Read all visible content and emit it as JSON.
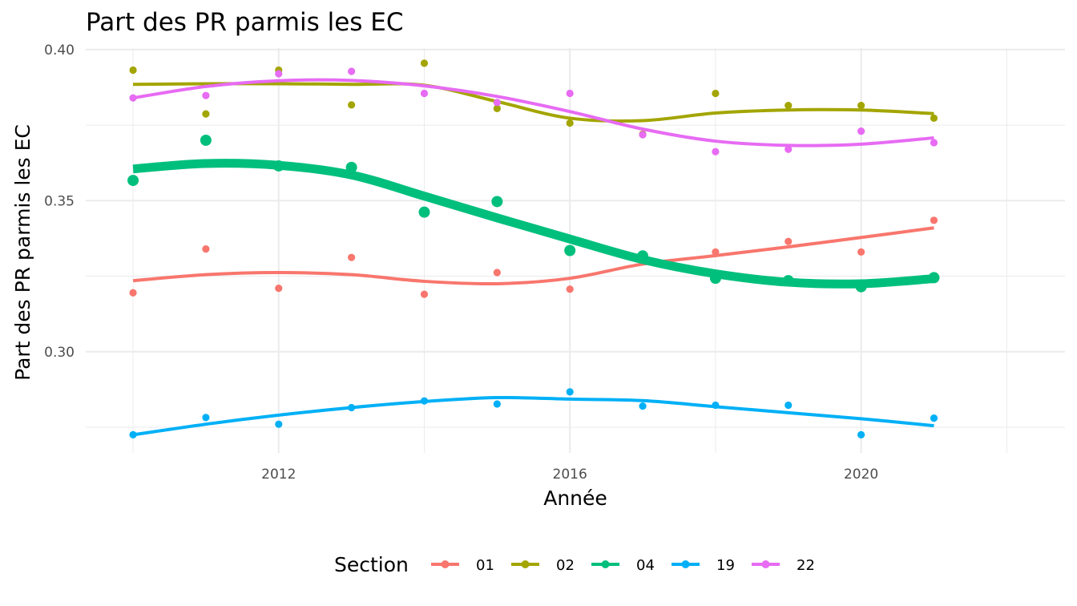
{
  "chart_data": {
    "type": "line",
    "title": "Part des PR parmis les EC",
    "xlabel": "Année",
    "ylabel": "Part des PR parmis les EC",
    "xlim": [
      2009.35,
      2022.8
    ],
    "ylim": [
      0.2665,
      0.4005
    ],
    "x_ticks": [
      2012,
      2016,
      2020
    ],
    "y_ticks": [
      0.3,
      0.35,
      0.4
    ],
    "y_tick_labels": [
      "0.30",
      "0.35",
      "0.40"
    ],
    "grid": true,
    "legend": {
      "title": "Section",
      "position": "bottom"
    },
    "x": [
      2010,
      2011,
      2012,
      2013,
      2014,
      2015,
      2016,
      2017,
      2018,
      2019,
      2020,
      2021
    ],
    "series": [
      {
        "name": "01",
        "color": "#F8766D",
        "emphasis": false,
        "points": [
          0.3195,
          0.334,
          0.321,
          0.3312,
          0.319,
          0.3262,
          0.3207,
          0.33,
          0.333,
          0.3365,
          0.333,
          0.3435
        ],
        "smooth": [
          0.3235,
          0.3255,
          0.3262,
          0.3255,
          0.3233,
          0.3225,
          0.3243,
          0.329,
          0.3318,
          0.3347,
          0.3378,
          0.341
        ]
      },
      {
        "name": "02",
        "color": "#A3A500",
        "emphasis": false,
        "points": [
          0.3932,
          0.3787,
          0.3932,
          0.3817,
          0.3955,
          0.3805,
          0.3757,
          0.372,
          0.3855,
          0.3815,
          0.3815,
          0.3773
        ],
        "smooth": [
          0.3885,
          0.3887,
          0.3887,
          0.3885,
          0.3882,
          0.3828,
          0.3773,
          0.3765,
          0.379,
          0.38,
          0.38,
          0.3788
        ]
      },
      {
        "name": "04",
        "color": "#00BF7D",
        "emphasis": true,
        "points": [
          0.3567,
          0.37,
          0.3615,
          0.361,
          0.3462,
          0.3497,
          0.3335,
          0.3317,
          0.3243,
          0.3235,
          0.3215,
          0.3245
        ],
        "smooth": [
          0.3605,
          0.3623,
          0.3617,
          0.3585,
          0.3515,
          0.3443,
          0.3373,
          0.3305,
          0.3258,
          0.323,
          0.3225,
          0.3242
        ]
      },
      {
        "name": "19",
        "color": "#00B0F6",
        "emphasis": false,
        "points": [
          0.2725,
          0.2782,
          0.276,
          0.2815,
          0.2837,
          0.2827,
          0.2867,
          0.282,
          0.2823,
          0.2823,
          0.2725,
          0.278
        ],
        "smooth": [
          0.2725,
          0.276,
          0.279,
          0.2815,
          0.2835,
          0.2848,
          0.2843,
          0.2838,
          0.2818,
          0.2798,
          0.2778,
          0.2755
        ]
      },
      {
        "name": "22",
        "color": "#E76BF3",
        "emphasis": false,
        "points": [
          0.384,
          0.3848,
          0.392,
          0.3928,
          0.3855,
          0.3825,
          0.3855,
          0.3718,
          0.3662,
          0.367,
          0.373,
          0.3692
        ],
        "smooth": [
          0.384,
          0.3878,
          0.3897,
          0.3898,
          0.388,
          0.3845,
          0.3795,
          0.3737,
          0.3697,
          0.3683,
          0.3687,
          0.3708
        ]
      }
    ]
  }
}
